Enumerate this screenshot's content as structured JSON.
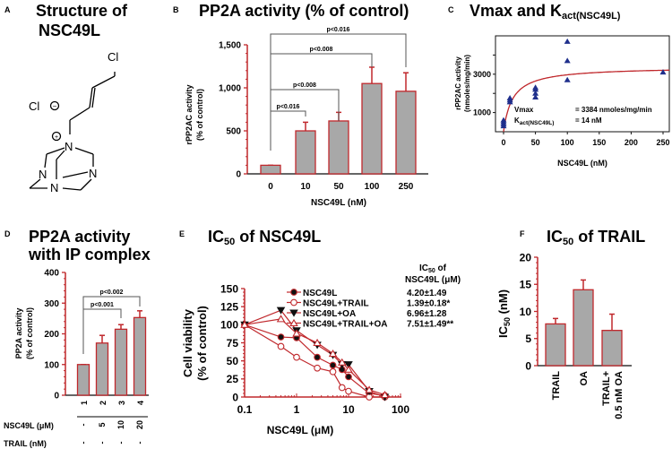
{
  "panels": {
    "A": {
      "label": "A",
      "title_line1": "Structure of",
      "title_line2": "NSC49L",
      "atoms": {
        "cl_top": "Cl",
        "cl_ion": "Cl",
        "n": "N",
        "plus": "+",
        "minus": "−"
      }
    },
    "B": {
      "label": "B",
      "title": "PP2A activity (% of control)"
    },
    "C": {
      "label": "C",
      "title_main": "Vmax and K",
      "title_sub": "act(NSC49L)"
    },
    "D": {
      "label": "D",
      "title_line1": "PP2A activity",
      "title_line2": "with IP complex"
    },
    "E": {
      "label": "E",
      "title_pre": "IC",
      "title_sub": "50",
      "title_post": " of NSC49L"
    },
    "F": {
      "label": "F",
      "title_pre": "IC",
      "title_sub": "50",
      "title_post": " of TRAIL"
    }
  },
  "colors": {
    "red": "#c0282c",
    "bar": "#a8a8a8",
    "blue": "#1f2f8c",
    "text": "#000000"
  },
  "chart_data": [
    {
      "id": "B",
      "type": "bar",
      "categories": [
        "0",
        "10",
        "50",
        "100",
        "250"
      ],
      "values": [
        100,
        500,
        615,
        1050,
        960
      ],
      "error_upper": [
        100,
        600,
        715,
        1240,
        1175
      ],
      "xlabel": "NSC49L (nM)",
      "ylabel_line1": "rPP2AC activity",
      "ylabel_line2": "(% of control)",
      "ylim": [
        0,
        1500
      ],
      "yticks": [
        "0",
        "500",
        "1,000",
        "1,500"
      ],
      "ytick_values": [
        0,
        500,
        1000,
        1500
      ],
      "brackets": [
        {
          "from": "0",
          "to": "10",
          "label": "p<0.016"
        },
        {
          "from": "0",
          "to": "50",
          "label": "p<0.008"
        },
        {
          "from": "0",
          "to": "100",
          "label": "p<0.008"
        },
        {
          "from": "0",
          "to": "250",
          "label": "p<0.016"
        }
      ]
    },
    {
      "id": "C",
      "type": "scatter",
      "points": [
        {
          "x": 0,
          "y": 300
        },
        {
          "x": 0,
          "y": 400
        },
        {
          "x": 0,
          "y": 500
        },
        {
          "x": 0,
          "y": 600
        },
        {
          "x": 10,
          "y": 1550
        },
        {
          "x": 10,
          "y": 1650
        },
        {
          "x": 10,
          "y": 1750
        },
        {
          "x": 50,
          "y": 1800
        },
        {
          "x": 50,
          "y": 2000
        },
        {
          "x": 50,
          "y": 2200
        },
        {
          "x": 50,
          "y": 2300
        },
        {
          "x": 100,
          "y": 2700
        },
        {
          "x": 100,
          "y": 3700
        },
        {
          "x": 100,
          "y": 4700
        },
        {
          "x": 250,
          "y": 3100
        }
      ],
      "fit": {
        "model": "michaelis-menten",
        "vmax": 3384,
        "k": 14
      },
      "xlabel": "NSC49L (nM)",
      "ylabel_line1": "rPP2AC activity",
      "ylabel_line2": "(nmoles/mg/min)",
      "xlim": [
        0,
        260
      ],
      "ylim": [
        0,
        5000
      ],
      "xticks": [
        0,
        50,
        100,
        150,
        200,
        250
      ],
      "yticks": [
        1000,
        3000
      ],
      "annotation": {
        "vmax_label": "Vmax",
        "vmax_value": "= 3384 nmoles/mg/min",
        "k_label": "K",
        "k_sub": "act(NSC49L)",
        "k_value": "= 14 nM"
      }
    },
    {
      "id": "D",
      "type": "bar",
      "categories": [
        "1",
        "2",
        "3",
        "4"
      ],
      "values": [
        100,
        170,
        215,
        253
      ],
      "error_upper": [
        100,
        195,
        230,
        275
      ],
      "ylabel_line1": "PP2A activity",
      "ylabel_line2": "(% of control)",
      "ylim": [
        0,
        400
      ],
      "yticks": [
        "0",
        "100",
        "200",
        "300",
        "400"
      ],
      "ytick_values": [
        0,
        100,
        200,
        300,
        400
      ],
      "brackets": [
        {
          "from": "1",
          "to": "3",
          "label": "p<0.001"
        },
        {
          "from": "1",
          "to": "4",
          "label": "p<0.002"
        }
      ],
      "conditions": [
        {
          "label": "NSC49L (μM)",
          "values": [
            "-",
            "5",
            "10",
            "20"
          ]
        },
        {
          "label": "TRAIL (nM)",
          "values": [
            "-",
            "-",
            "-",
            "-"
          ]
        }
      ]
    },
    {
      "id": "E",
      "type": "line",
      "x": [
        0.1,
        0.5,
        1,
        2.5,
        5,
        7.5,
        10,
        25,
        50
      ],
      "series": [
        {
          "name": "NSC49L",
          "marker": "filled-circle",
          "values": [
            100,
            83,
            82,
            55,
            44,
            38,
            28,
            5,
            2
          ],
          "ic50": "4.20±1.49"
        },
        {
          "name": "NSC49L+TRAIL",
          "marker": "open-circle",
          "values": [
            100,
            70,
            55,
            40,
            35,
            13,
            8,
            0,
            0
          ],
          "ic50": "1.39±0.18*"
        },
        {
          "name": "NSC49L+OA",
          "marker": "filled-triangle-down",
          "values": [
            100,
            120,
            92,
            72,
            58,
            45,
            45,
            8,
            0
          ],
          "ic50": "6.96±1.28"
        },
        {
          "name": "NSC49L+TRAIL+OA",
          "marker": "open-triangle-up",
          "values": [
            100,
            108,
            88,
            75,
            60,
            48,
            38,
            10,
            3
          ],
          "ic50": "7.51±1.49**"
        }
      ],
      "ic50_header_pre": "IC",
      "ic50_header_sub": "50",
      "ic50_header_post": " of",
      "ic50_header_line2": "NSC49L (μM)",
      "xscale": "log",
      "xlim": [
        0.1,
        100
      ],
      "ylim": [
        0,
        150
      ],
      "xticks": [
        "0.1",
        "1",
        "10",
        "100"
      ],
      "xtick_values": [
        0.1,
        1,
        10,
        100
      ],
      "yticks": [
        "0",
        "25",
        "50",
        "75",
        "100",
        "125",
        "150"
      ],
      "ytick_values": [
        0,
        25,
        50,
        75,
        100,
        125,
        150
      ],
      "xlabel": "NSC49L (μM)",
      "ylabel_line1": "Cell viability",
      "ylabel_line2": "(% of control)"
    },
    {
      "id": "F",
      "type": "bar",
      "categories": [
        "TRAIL",
        "OA",
        "TRAIL+|0.5 nM OA"
      ],
      "values": [
        7.7,
        14,
        6.5
      ],
      "error_upper": [
        8.7,
        15.8,
        9.5
      ],
      "ylabel_pre": "IC",
      "ylabel_sub": "50",
      "ylabel_post": " (nM)",
      "ylim": [
        0,
        20
      ],
      "yticks": [
        "0",
        "5",
        "10",
        "15",
        "20"
      ],
      "ytick_values": [
        0,
        5,
        10,
        15,
        20
      ]
    }
  ]
}
